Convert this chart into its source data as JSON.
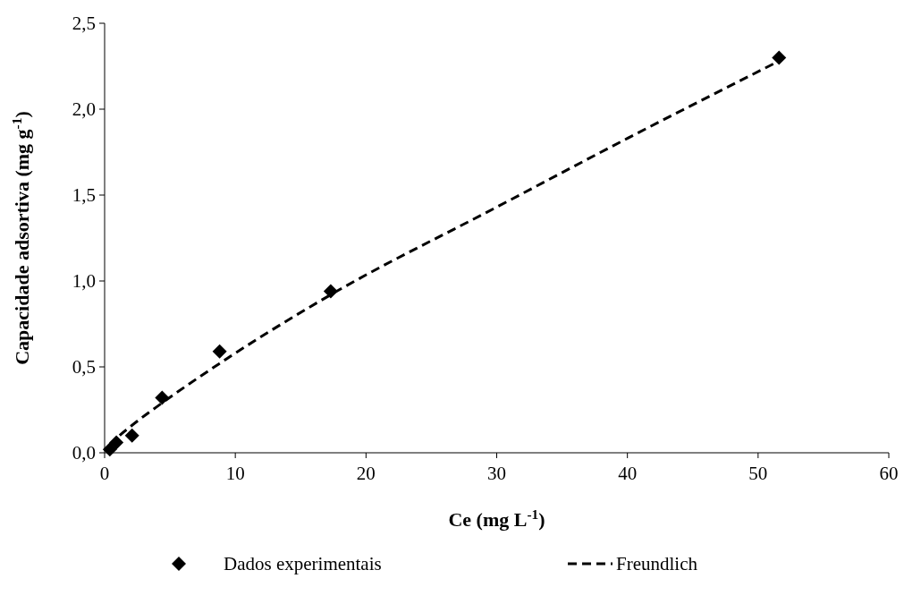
{
  "chart_data": {
    "type": "scatter",
    "xlabel": "Ce (mg L$^{-1}$)",
    "ylabel": "Capacidade adsortiva (mg g$^{-1}$)",
    "xlim": [
      0,
      60
    ],
    "xticks": [
      0,
      10,
      20,
      30,
      40,
      50,
      60
    ],
    "ylim": [
      0,
      2.5
    ],
    "yticks": [
      {
        "value": 0,
        "label": "0,0"
      },
      {
        "value": 0.5,
        "label": "0,5"
      },
      {
        "value": 1,
        "label": "1,0"
      },
      {
        "value": 1.5,
        "label": "1,5"
      },
      {
        "value": 2,
        "label": "2,0"
      },
      {
        "value": 2.5,
        "label": "2,5"
      }
    ],
    "grid": false,
    "legend": "bottom",
    "series": [
      {
        "name": "Dados experimentais",
        "marker": "diamond",
        "color": "#000000",
        "x": [
          0.4,
          0.9,
          2.1,
          4.4,
          8.8,
          17.3,
          51.6
        ],
        "values": [
          0.02,
          0.06,
          0.1,
          0.32,
          0.59,
          0.94,
          2.3
        ]
      },
      {
        "name": "Freundlich",
        "type": "line",
        "line_style": "dashed",
        "marker": "none",
        "color": "#000000",
        "x": [
          0.4,
          1,
          2.1,
          4.4,
          8.8,
          17.3,
          30,
          40,
          51.6
        ],
        "values": [
          0.04,
          0.09,
          0.16,
          0.29,
          0.52,
          0.92,
          1.43,
          1.83,
          2.28
        ]
      }
    ]
  }
}
